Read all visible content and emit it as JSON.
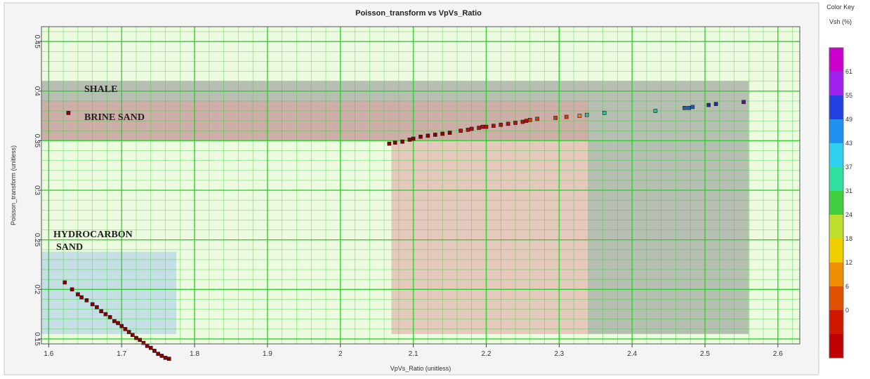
{
  "chart_data": {
    "type": "scatter",
    "title": "Poisson_transform vs VpVs_Ratio",
    "xlabel": "VpVs_Ratio (unitless)",
    "ylabel": "Poisson_transform (unitless)",
    "xlim": [
      1.59,
      2.63
    ],
    "ylim": [
      0.145,
      0.465
    ],
    "x_ticks": [
      "1.6",
      "1.7",
      "1.8",
      "1.9",
      "2",
      "2.1",
      "2.2",
      "2.3",
      "2.4",
      "2.5",
      "2.6"
    ],
    "y_ticks": [
      "0.15",
      "0.2",
      "0.25",
      "0.3",
      "0.35",
      "0.4",
      "0.45"
    ],
    "grid": true,
    "zones": [
      {
        "label": "SHALE",
        "x0": 1.59,
        "x1": 2.56,
        "y0": 0.35,
        "y1": 0.41,
        "color": "#8c8c8c"
      },
      {
        "label": "BRINE  SAND",
        "x0": 2.07,
        "x1": 2.34,
        "y0": 0.155,
        "y1": 0.39,
        "color": "#e0a0a0"
      },
      {
        "label": "BRINE  SAND",
        "x0": 1.59,
        "x1": 2.07,
        "y0": 0.35,
        "y1": 0.39,
        "color": "#e0a0a0"
      },
      {
        "label": "SHALE",
        "x0": 2.34,
        "x1": 2.56,
        "y0": 0.155,
        "y1": 0.35,
        "color": "#8c8c8c"
      },
      {
        "label": "HYDROCARBON SAND",
        "x0": 1.59,
        "x1": 1.775,
        "y0": 0.155,
        "y1": 0.238,
        "color": "#a8c8e8"
      }
    ],
    "zone_labels": {
      "shale": "SHALE",
      "brine": "BRINE  SAND",
      "hc_line1": "HYDROCARBON",
      "hc_line2": "SAND"
    },
    "series": [
      {
        "points": [
          [
            1.622,
            0.207,
            0
          ],
          [
            1.632,
            0.2,
            0
          ],
          [
            1.64,
            0.195,
            0
          ],
          [
            1.645,
            0.192,
            0
          ],
          [
            1.652,
            0.189,
            0
          ],
          [
            1.66,
            0.185,
            0
          ],
          [
            1.666,
            0.182,
            0
          ],
          [
            1.672,
            0.178,
            0
          ],
          [
            1.678,
            0.175,
            0
          ],
          [
            1.684,
            0.172,
            0
          ],
          [
            1.69,
            0.168,
            0
          ],
          [
            1.695,
            0.166,
            0
          ],
          [
            1.7,
            0.163,
            0
          ],
          [
            1.705,
            0.16,
            0
          ],
          [
            1.71,
            0.157,
            0
          ],
          [
            1.715,
            0.154,
            0
          ],
          [
            1.72,
            0.151,
            0
          ],
          [
            1.725,
            0.149,
            0
          ],
          [
            1.73,
            0.146,
            0
          ],
          [
            1.735,
            0.143,
            0
          ],
          [
            1.74,
            0.141,
            0
          ],
          [
            1.745,
            0.138,
            0
          ],
          [
            1.75,
            0.135,
            0
          ],
          [
            1.755,
            0.133,
            0
          ],
          [
            1.76,
            0.131,
            0
          ],
          [
            1.765,
            0.13,
            0
          ],
          [
            1.627,
            0.378,
            0
          ],
          [
            2.067,
            0.347,
            3
          ],
          [
            2.075,
            0.348,
            3
          ],
          [
            2.085,
            0.349,
            3
          ],
          [
            2.095,
            0.351,
            3
          ],
          [
            2.1,
            0.352,
            3
          ],
          [
            2.11,
            0.354,
            3
          ],
          [
            2.12,
            0.355,
            3
          ],
          [
            2.13,
            0.356,
            3
          ],
          [
            2.14,
            0.357,
            3
          ],
          [
            2.15,
            0.358,
            3
          ],
          [
            2.165,
            0.36,
            6
          ],
          [
            2.175,
            0.361,
            6
          ],
          [
            2.18,
            0.362,
            6
          ],
          [
            2.19,
            0.363,
            6
          ],
          [
            2.195,
            0.364,
            6
          ],
          [
            2.2,
            0.364,
            6
          ],
          [
            2.21,
            0.365,
            6
          ],
          [
            2.22,
            0.366,
            6
          ],
          [
            2.23,
            0.367,
            10
          ],
          [
            2.24,
            0.368,
            10
          ],
          [
            2.25,
            0.369,
            10
          ],
          [
            2.255,
            0.37,
            10
          ],
          [
            2.26,
            0.371,
            12
          ],
          [
            2.27,
            0.372,
            12
          ],
          [
            2.295,
            0.373,
            14
          ],
          [
            2.31,
            0.374,
            14
          ],
          [
            2.328,
            0.375,
            28
          ],
          [
            2.338,
            0.376,
            38
          ],
          [
            2.362,
            0.378,
            42
          ],
          [
            2.432,
            0.38,
            41
          ],
          [
            2.472,
            0.383,
            50
          ],
          [
            2.478,
            0.383,
            52
          ],
          [
            2.483,
            0.384,
            54
          ],
          [
            2.505,
            0.386,
            58
          ],
          [
            2.515,
            0.387,
            60
          ],
          [
            2.553,
            0.389,
            62
          ]
        ]
      }
    ],
    "color_key": {
      "title": "Color Key",
      "subtitle": "Vsh (%)",
      "labels": [
        "61",
        "55",
        "49",
        "43",
        "37",
        "31",
        "24",
        "18",
        "12",
        "6",
        "0"
      ],
      "colors": [
        "#cc00cc",
        "#a020f0",
        "#2040e0",
        "#2090f0",
        "#30d0f0",
        "#30e0a0",
        "#40d040",
        "#c0e030",
        "#f0d000",
        "#f09000",
        "#e05000",
        "#d01800",
        "#c00000"
      ]
    }
  }
}
